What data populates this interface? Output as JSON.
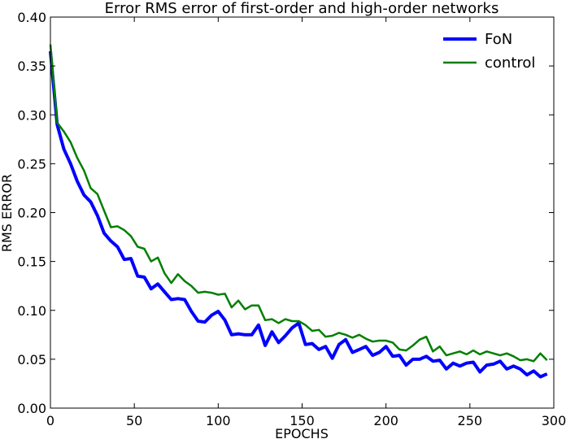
{
  "chart_data": {
    "type": "line",
    "title": "Error RMS error of first-order and high-order networks",
    "xlabel": "EPOCHS",
    "ylabel": "RMS ERROR",
    "xlim": [
      0,
      300
    ],
    "ylim": [
      0.0,
      0.4
    ],
    "xticks": [
      0,
      50,
      100,
      150,
      200,
      250,
      300
    ],
    "yticks": [
      0.0,
      0.05,
      0.1,
      0.15,
      0.2,
      0.25,
      0.3,
      0.35,
      0.4
    ],
    "xtick_labels": [
      "0",
      "50",
      "100",
      "150",
      "200",
      "250",
      "300"
    ],
    "ytick_labels": [
      "0.00",
      "0.05",
      "0.10",
      "0.15",
      "0.20",
      "0.25",
      "0.30",
      "0.35",
      "0.40"
    ],
    "grid": false,
    "legend_position": "top-right",
    "x": [
      0,
      4,
      8,
      12,
      16,
      20,
      24,
      28,
      32,
      36,
      40,
      44,
      48,
      52,
      56,
      60,
      64,
      68,
      72,
      76,
      80,
      84,
      88,
      92,
      96,
      100,
      104,
      108,
      112,
      116,
      120,
      124,
      128,
      132,
      136,
      140,
      144,
      148,
      152,
      156,
      160,
      164,
      168,
      172,
      176,
      180,
      184,
      188,
      192,
      196,
      200,
      204,
      208,
      212,
      216,
      220,
      224,
      228,
      232,
      236,
      240,
      244,
      248,
      252,
      256,
      260,
      264,
      268,
      272,
      276,
      280,
      284,
      288,
      292,
      296
    ],
    "series": [
      {
        "name": "FoN",
        "color": "#0000ff",
        "line_width": 4,
        "values": [
          0.365,
          0.29,
          0.265,
          0.25,
          0.232,
          0.218,
          0.211,
          0.197,
          0.179,
          0.171,
          0.165,
          0.152,
          0.153,
          0.135,
          0.134,
          0.122,
          0.127,
          0.119,
          0.111,
          0.112,
          0.111,
          0.099,
          0.089,
          0.088,
          0.095,
          0.099,
          0.09,
          0.075,
          0.076,
          0.075,
          0.075,
          0.085,
          0.064,
          0.078,
          0.067,
          0.074,
          0.082,
          0.087,
          0.065,
          0.066,
          0.06,
          0.063,
          0.051,
          0.065,
          0.07,
          0.057,
          0.06,
          0.063,
          0.054,
          0.057,
          0.063,
          0.053,
          0.054,
          0.044,
          0.05,
          0.05,
          0.053,
          0.048,
          0.049,
          0.04,
          0.046,
          0.043,
          0.046,
          0.047,
          0.037,
          0.044,
          0.045,
          0.048,
          0.04,
          0.043,
          0.04,
          0.034,
          0.038,
          0.032,
          0.035
        ]
      },
      {
        "name": "control",
        "color": "#007f00",
        "line_width": 2.5,
        "values": [
          0.372,
          0.292,
          0.283,
          0.272,
          0.256,
          0.243,
          0.225,
          0.219,
          0.202,
          0.185,
          0.186,
          0.182,
          0.176,
          0.165,
          0.163,
          0.15,
          0.154,
          0.138,
          0.128,
          0.137,
          0.13,
          0.125,
          0.118,
          0.119,
          0.118,
          0.116,
          0.117,
          0.103,
          0.11,
          0.101,
          0.105,
          0.105,
          0.09,
          0.091,
          0.087,
          0.091,
          0.089,
          0.089,
          0.085,
          0.079,
          0.08,
          0.073,
          0.074,
          0.077,
          0.075,
          0.072,
          0.075,
          0.071,
          0.068,
          0.069,
          0.069,
          0.067,
          0.06,
          0.059,
          0.064,
          0.07,
          0.073,
          0.058,
          0.063,
          0.054,
          0.056,
          0.058,
          0.055,
          0.059,
          0.055,
          0.058,
          0.056,
          0.054,
          0.056,
          0.053,
          0.049,
          0.05,
          0.048,
          0.056,
          0.049
        ]
      }
    ]
  }
}
